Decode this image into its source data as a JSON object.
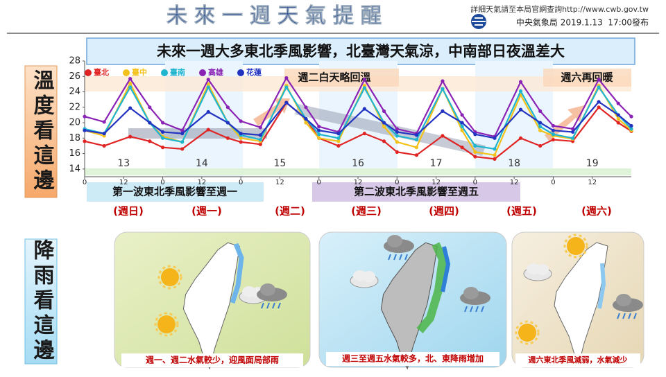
{
  "header": {
    "title": "未來一週天氣提醒",
    "website_note": "詳細天氣請至本局官網查詢http://www.cwb.gov.tw",
    "issuer": "中央氣象局 2019.1.13  17:00發布"
  },
  "banner": "未來一週大多東北季風影響，北臺灣天氣涼，中南部日夜溫差大",
  "side_labels": [
    "溫度看這邊",
    "降雨看這邊"
  ],
  "chart_data": {
    "type": "line",
    "x": [
      0,
      6,
      14,
      20,
      24,
      30,
      38,
      44,
      48,
      54,
      62,
      68,
      72,
      78,
      86,
      92,
      96,
      102,
      110,
      116,
      120,
      126,
      134,
      140,
      144,
      150,
      158,
      164,
      168
    ],
    "series": [
      {
        "name": "臺北",
        "color": "#e02424",
        "values": [
          17.6,
          17,
          18.2,
          17.6,
          16.8,
          16.6,
          19.1,
          18,
          17.5,
          17.2,
          22.6,
          20.5,
          18,
          17,
          18.6,
          17.6,
          16.2,
          15.8,
          18.3,
          16.8,
          15.6,
          15.3,
          18,
          17,
          17.8,
          17.6,
          22,
          20,
          18.9
        ]
      },
      {
        "name": "臺中",
        "color": "#f2c21a",
        "values": [
          19,
          18.3,
          25.1,
          20,
          18.2,
          17.5,
          25,
          20,
          18,
          17.6,
          24.8,
          20,
          18,
          17.6,
          24.8,
          19.5,
          17.5,
          16.8,
          24.4,
          19,
          16.2,
          15.8,
          23.6,
          19,
          18.3,
          17.9,
          24.8,
          20.5,
          19
        ]
      },
      {
        "name": "臺南",
        "color": "#1fb5cf",
        "values": [
          19.2,
          18.6,
          24.6,
          20,
          18,
          17.5,
          24.6,
          20,
          18.4,
          17.8,
          24.6,
          20.5,
          18.5,
          18,
          24.5,
          20,
          18.3,
          17.8,
          24.4,
          19.5,
          17,
          16.6,
          24.1,
          19.5,
          18.5,
          18,
          24.6,
          21,
          19.2
        ]
      },
      {
        "name": "高雄",
        "color": "#8a22b5",
        "values": [
          20.8,
          20.1,
          25.7,
          22,
          20,
          19,
          25.6,
          22,
          20.2,
          19.4,
          25.8,
          22,
          19.5,
          18.8,
          25.6,
          21.5,
          19.2,
          18.6,
          25.4,
          21,
          18.8,
          18.2,
          25.3,
          21.5,
          19.6,
          19.2,
          25.6,
          22.5,
          20.8
        ]
      },
      {
        "name": "花蓮",
        "color": "#2233c2",
        "values": [
          19,
          18.6,
          21.9,
          20,
          18.8,
          18.6,
          21.4,
          20,
          18.6,
          18.4,
          22.6,
          20.5,
          19,
          18.6,
          21.8,
          20,
          18.8,
          18.4,
          21.5,
          20,
          18.5,
          18,
          21.7,
          20,
          19,
          18.8,
          22.7,
          21,
          19.6
        ]
      }
    ],
    "xlim": [
      0,
      168
    ],
    "xticks": [
      0,
      12,
      {
        "value": 24,
        "label": "0"
      },
      {
        "value": 36,
        "label": "12"
      },
      {
        "value": 48,
        "label": "0"
      },
      {
        "value": 60,
        "label": "12"
      },
      {
        "value": 72,
        "label": "0"
      },
      {
        "value": 84,
        "label": "12"
      },
      {
        "value": 96,
        "label": "0"
      },
      {
        "value": 108,
        "label": "12"
      },
      {
        "value": 120,
        "label": "0"
      },
      {
        "value": 132,
        "label": "12"
      },
      {
        "value": 144,
        "label": "0"
      },
      {
        "value": 156,
        "label": "12"
      }
    ],
    "ylim": [
      13,
      28
    ],
    "yticks": [
      14,
      16,
      18,
      20,
      22,
      24,
      26,
      28
    ],
    "grid": false,
    "day_labels": [
      13,
      14,
      15,
      16,
      17,
      18,
      19
    ],
    "weekday_labels": [
      "(週日)",
      "(週一)",
      "(週二)",
      "(週三)",
      "(週四)",
      "(週五)",
      "(週六)"
    ],
    "annotations": [
      "週二白天略回溫",
      "週六再回暖",
      "第一波東北季風影響至週一",
      "第二波東北季風影響至週五"
    ]
  },
  "rain_maps": [
    {
      "caption": "週一、週二水氣較少，迎風面局部雨"
    },
    {
      "caption": "週三至週五水氣較多，北、東降雨增加"
    },
    {
      "caption": "週六東北季風減弱，水氣減少"
    }
  ]
}
